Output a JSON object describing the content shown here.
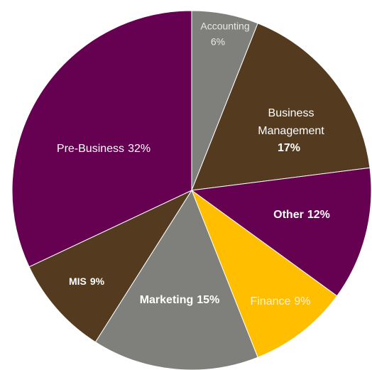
{
  "chart_data": {
    "type": "pie",
    "categories": [
      "Accounting",
      "Business Management",
      "Other",
      "Finance",
      "Marketing",
      "MIS",
      "Pre-Business"
    ],
    "values": [
      6,
      17,
      12,
      9,
      15,
      9,
      32
    ],
    "value_labels": [
      "6%",
      "17%",
      "12%",
      "9%",
      "15%",
      "9%",
      "32%"
    ],
    "colors": [
      "#7f7f7b",
      "#543a1e",
      "#660050",
      "#ffbe00",
      "#7f7f7b",
      "#543a1e",
      "#660050"
    ]
  }
}
